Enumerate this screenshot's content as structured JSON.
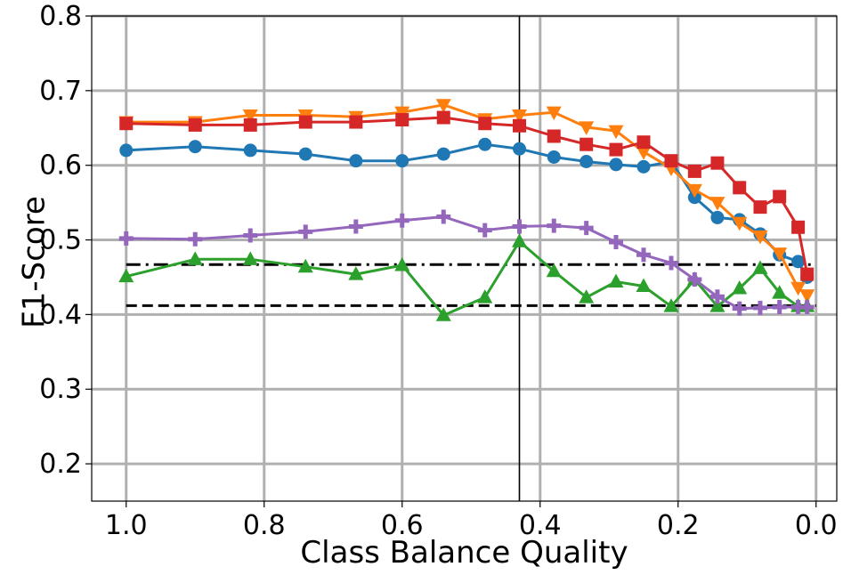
{
  "chart_data": {
    "type": "line",
    "title": "",
    "xlabel": "Class Balance Quality",
    "ylabel": "F1-Score",
    "xlim": [
      1.05,
      -0.03
    ],
    "ylim": [
      0.15,
      0.8
    ],
    "x_reversed": true,
    "grid": true,
    "legend": "none",
    "x_ticks": [
      1.0,
      0.8,
      0.6,
      0.4,
      0.2,
      0.0
    ],
    "x_tick_labels": [
      "1.0",
      "0.8",
      "0.6",
      "0.4",
      "0.2",
      "0.0"
    ],
    "y_ticks": [
      0.2,
      0.3,
      0.4,
      0.5,
      0.6,
      0.7,
      0.8
    ],
    "y_tick_labels": [
      "0.2",
      "0.3",
      "0.4",
      "0.5",
      "0.6",
      "0.7",
      "0.8"
    ],
    "x": [
      1.0,
      0.9,
      0.82,
      0.74,
      0.667,
      0.6,
      0.54,
      0.48,
      0.43,
      0.38,
      0.333,
      0.29,
      0.25,
      0.21,
      0.176,
      0.143,
      0.111,
      0.081,
      0.053,
      0.026,
      0.013
    ],
    "series": [
      {
        "color": "#1f77b4",
        "marker": "circle",
        "values": [
          0.62,
          0.625,
          0.62,
          0.615,
          0.606,
          0.606,
          0.615,
          0.628,
          0.622,
          0.611,
          0.605,
          0.601,
          0.598,
          0.605,
          0.557,
          0.53,
          0.527,
          0.508,
          0.48,
          0.471,
          0.45
        ]
      },
      {
        "color": "#ff7f0e",
        "marker": "triangle-down",
        "values": [
          0.658,
          0.658,
          0.667,
          0.667,
          0.665,
          0.671,
          0.681,
          0.662,
          0.667,
          0.671,
          0.651,
          0.646,
          0.618,
          0.596,
          0.567,
          0.55,
          0.523,
          0.505,
          0.482,
          0.436,
          0.426
        ]
      },
      {
        "color": "#d62728",
        "marker": "square",
        "values": [
          0.656,
          0.654,
          0.654,
          0.658,
          0.658,
          0.661,
          0.664,
          0.656,
          0.653,
          0.639,
          0.628,
          0.621,
          0.631,
          0.606,
          0.592,
          0.603,
          0.57,
          0.544,
          0.558,
          0.517,
          0.454
        ]
      },
      {
        "color": "#2ca02c",
        "marker": "triangle-up",
        "values": [
          0.451,
          0.474,
          0.474,
          0.464,
          0.454,
          0.466,
          0.399,
          0.423,
          0.498,
          0.458,
          0.423,
          0.444,
          0.438,
          0.411,
          0.447,
          0.411,
          0.435,
          0.462,
          0.429,
          0.411,
          0.411
        ]
      },
      {
        "color": "#9467bd",
        "marker": "plus",
        "values": [
          0.502,
          0.501,
          0.506,
          0.511,
          0.518,
          0.526,
          0.531,
          0.513,
          0.518,
          0.519,
          0.516,
          0.497,
          0.48,
          0.469,
          0.447,
          0.424,
          0.408,
          0.409,
          0.41,
          0.41,
          0.41
        ]
      }
    ],
    "reference_lines": [
      {
        "orientation": "horizontal",
        "y": 0.467,
        "style": "dashdot",
        "color": "#000000",
        "x_from": 1.0,
        "x_to": 0.0
      },
      {
        "orientation": "horizontal",
        "y": 0.412,
        "style": "dashed",
        "color": "#000000",
        "x_from": 1.0,
        "x_to": 0.0
      },
      {
        "orientation": "vertical",
        "x": 0.43,
        "style": "solid",
        "color": "#000000"
      }
    ],
    "colors": {
      "grid": "#b0b0b0",
      "axes": "#000000",
      "background": "#ffffff"
    }
  }
}
